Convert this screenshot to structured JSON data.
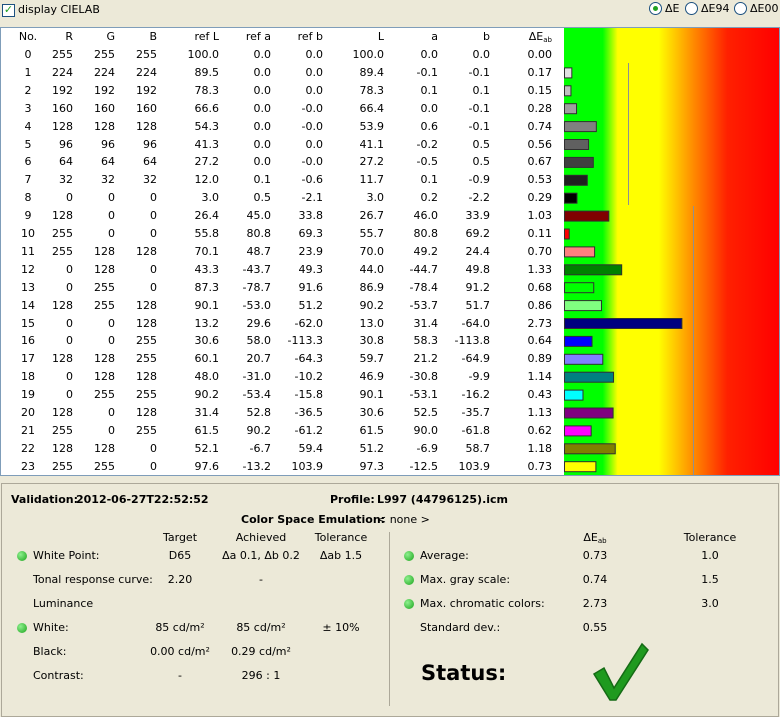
{
  "header": {
    "checkbox_label": "display CIELAB",
    "options": [
      "ΔE",
      "ΔE94",
      "ΔE00"
    ]
  },
  "table": {
    "columns": [
      "No.",
      "R",
      "G",
      "B",
      "ref L",
      "ref a",
      "ref b",
      "L",
      "a",
      "b",
      "ΔE"
    ],
    "delta_subscript": "ab",
    "rows": [
      [
        "0",
        "255",
        "255",
        "255",
        "100.0",
        "0.0",
        "0.0",
        "100.0",
        "0.0",
        "0.0",
        "0.00"
      ],
      [
        "1",
        "224",
        "224",
        "224",
        "89.5",
        "0.0",
        "0.0",
        "89.4",
        "-0.1",
        "-0.1",
        "0.17"
      ],
      [
        "2",
        "192",
        "192",
        "192",
        "78.3",
        "0.0",
        "0.0",
        "78.3",
        "0.1",
        "0.1",
        "0.15"
      ],
      [
        "3",
        "160",
        "160",
        "160",
        "66.6",
        "0.0",
        "-0.0",
        "66.4",
        "0.0",
        "-0.1",
        "0.28"
      ],
      [
        "4",
        "128",
        "128",
        "128",
        "54.3",
        "0.0",
        "-0.0",
        "53.9",
        "0.6",
        "-0.1",
        "0.74"
      ],
      [
        "5",
        "96",
        "96",
        "96",
        "41.3",
        "0.0",
        "0.0",
        "41.1",
        "-0.2",
        "0.5",
        "0.56"
      ],
      [
        "6",
        "64",
        "64",
        "64",
        "27.2",
        "0.0",
        "-0.0",
        "27.2",
        "-0.5",
        "0.5",
        "0.67"
      ],
      [
        "7",
        "32",
        "32",
        "32",
        "12.0",
        "0.1",
        "-0.6",
        "11.7",
        "0.1",
        "-0.9",
        "0.53"
      ],
      [
        "8",
        "0",
        "0",
        "0",
        "3.0",
        "0.5",
        "-2.1",
        "3.0",
        "0.2",
        "-2.2",
        "0.29"
      ],
      [
        "9",
        "128",
        "0",
        "0",
        "26.4",
        "45.0",
        "33.8",
        "26.7",
        "46.0",
        "33.9",
        "1.03"
      ],
      [
        "10",
        "255",
        "0",
        "0",
        "55.8",
        "80.8",
        "69.3",
        "55.7",
        "80.8",
        "69.2",
        "0.11"
      ],
      [
        "11",
        "255",
        "128",
        "128",
        "70.1",
        "48.7",
        "23.9",
        "70.0",
        "49.2",
        "24.4",
        "0.70"
      ],
      [
        "12",
        "0",
        "128",
        "0",
        "43.3",
        "-43.7",
        "49.3",
        "44.0",
        "-44.7",
        "49.8",
        "1.33"
      ],
      [
        "13",
        "0",
        "255",
        "0",
        "87.3",
        "-78.7",
        "91.6",
        "86.9",
        "-78.4",
        "91.2",
        "0.68"
      ],
      [
        "14",
        "128",
        "255",
        "128",
        "90.1",
        "-53.0",
        "51.2",
        "90.2",
        "-53.7",
        "51.7",
        "0.86"
      ],
      [
        "15",
        "0",
        "0",
        "128",
        "13.2",
        "29.6",
        "-62.0",
        "13.0",
        "31.4",
        "-64.0",
        "2.73"
      ],
      [
        "16",
        "0",
        "0",
        "255",
        "30.6",
        "58.0",
        "-113.3",
        "30.8",
        "58.3",
        "-113.8",
        "0.64"
      ],
      [
        "17",
        "128",
        "128",
        "255",
        "60.1",
        "20.7",
        "-64.3",
        "59.7",
        "21.2",
        "-64.9",
        "0.89"
      ],
      [
        "18",
        "0",
        "128",
        "128",
        "48.0",
        "-31.0",
        "-10.2",
        "46.9",
        "-30.8",
        "-9.9",
        "1.14"
      ],
      [
        "19",
        "0",
        "255",
        "255",
        "90.2",
        "-53.4",
        "-15.8",
        "90.1",
        "-53.1",
        "-16.2",
        "0.43"
      ],
      [
        "20",
        "128",
        "0",
        "128",
        "31.4",
        "52.8",
        "-36.5",
        "30.6",
        "52.5",
        "-35.7",
        "1.13"
      ],
      [
        "21",
        "255",
        "0",
        "255",
        "61.5",
        "90.2",
        "-61.2",
        "61.5",
        "90.0",
        "-61.8",
        "0.62"
      ],
      [
        "22",
        "128",
        "128",
        "0",
        "52.1",
        "-6.7",
        "59.4",
        "51.2",
        "-6.9",
        "58.7",
        "1.18"
      ],
      [
        "23",
        "255",
        "255",
        "0",
        "97.6",
        "-13.2",
        "103.9",
        "97.3",
        "-12.5",
        "103.9",
        "0.73"
      ]
    ]
  },
  "summary": {
    "validation_label": "Validation:",
    "validation": "2012-06-27T22:52:52",
    "profile_label": "Profile:",
    "profile": "L997 (44796125).icm",
    "emulation_label": "Color Space Emulation:",
    "emulation": "< none >",
    "left": {
      "headers": [
        "Target",
        "Achieved",
        "Tolerance"
      ],
      "rows": [
        {
          "label": "White Point:",
          "cells": [
            "D65",
            "Δa 0.1, Δb 0.2",
            "Δab 1.5"
          ],
          "ok": true
        },
        {
          "label": "Tonal response curve:",
          "cells": [
            "2.20",
            "-"
          ],
          "ok": false
        },
        {
          "label": "Luminance",
          "cells": [],
          "ok": false
        },
        {
          "label": "White:",
          "cells": [
            "85 cd/m²",
            "85 cd/m²",
            "± 10%"
          ],
          "ok": true
        },
        {
          "label": "Black:",
          "cells": [
            "0.00 cd/m²",
            "0.29 cd/m²"
          ],
          "ok": false
        },
        {
          "label": "Contrast:",
          "cells": [
            "-",
            "296 : 1"
          ],
          "ok": false
        }
      ]
    },
    "right": {
      "header_delta": "ΔE",
      "header_sub": "ab",
      "header_tolerance": "Tolerance",
      "rows": [
        {
          "label": "Average:",
          "cells": [
            "0.73",
            "1.0"
          ],
          "ok": true
        },
        {
          "label": "Max. gray scale:",
          "cells": [
            "0.74",
            "1.5"
          ],
          "ok": true
        },
        {
          "label": "Max. chromatic colors:",
          "cells": [
            "2.73",
            "3.0"
          ],
          "ok": true
        },
        {
          "label": "Standard dev.:",
          "cells": [
            "0.55"
          ],
          "ok": false
        }
      ]
    },
    "status_label": "Status:"
  }
}
